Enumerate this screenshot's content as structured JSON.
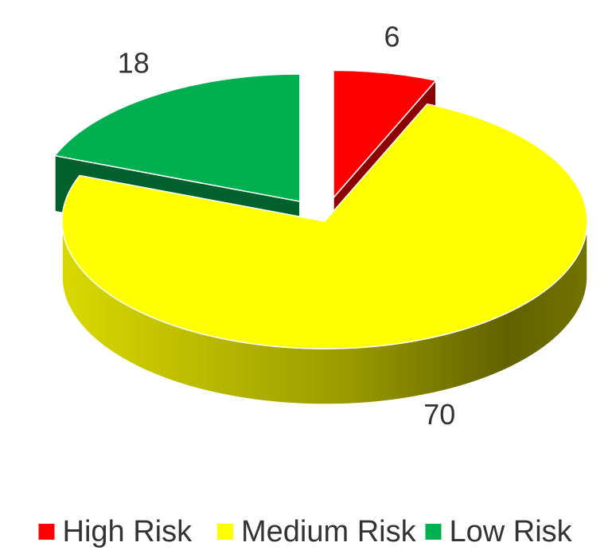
{
  "chart_data": {
    "type": "pie",
    "style": "3d-exploded",
    "categories": [
      "High Risk",
      "Medium Risk",
      "Low Risk"
    ],
    "values": [
      6,
      70,
      18
    ],
    "data_labels": [
      "6",
      "70",
      "18"
    ],
    "colors": {
      "High Risk": "#ff0000",
      "Medium Risk": "#ffff00",
      "Low Risk": "#00b050"
    },
    "exploded": [
      "High Risk",
      "Low Risk"
    ],
    "legend_position": "bottom",
    "title": ""
  }
}
